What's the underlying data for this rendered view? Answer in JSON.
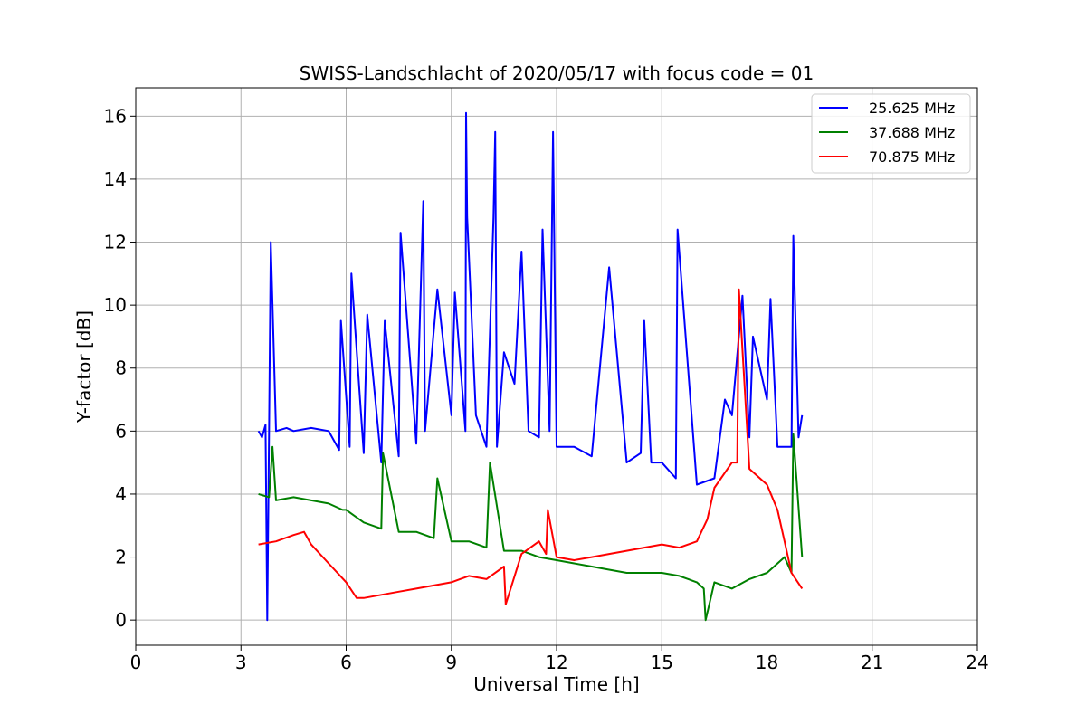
{
  "chart_data": {
    "type": "line",
    "title": "SWISS-Landschlacht of 2020/05/17 with focus code = 01",
    "xlabel": "Universal Time [h]",
    "ylabel": "Y-factor [dB]",
    "xlim": [
      0,
      24
    ],
    "ylim": [
      -0.8,
      16.9
    ],
    "xticks": [
      0,
      3,
      6,
      9,
      12,
      15,
      18,
      21,
      24
    ],
    "yticks": [
      0,
      2,
      4,
      6,
      8,
      10,
      12,
      14,
      16
    ],
    "grid": true,
    "legend_position": "top-right",
    "series": [
      {
        "name": "25.625 MHz",
        "color": "#0000ff",
        "x": [
          3.5,
          3.6,
          3.7,
          3.75,
          3.8,
          3.85,
          4.0,
          4.3,
          4.5,
          5.0,
          5.5,
          5.8,
          5.85,
          6.1,
          6.15,
          6.5,
          6.6,
          7.0,
          7.1,
          7.5,
          7.55,
          8.0,
          8.2,
          8.25,
          8.6,
          9.0,
          9.1,
          9.4,
          9.42,
          9.45,
          9.7,
          10.0,
          10.2,
          10.25,
          10.3,
          10.5,
          10.8,
          11.0,
          11.2,
          11.5,
          11.6,
          11.8,
          11.9,
          12.0,
          12.5,
          13.0,
          13.5,
          14.0,
          14.4,
          14.5,
          14.7,
          15.0,
          15.4,
          15.45,
          16.0,
          16.5,
          16.8,
          17.0,
          17.3,
          17.5,
          17.6,
          18.0,
          18.1,
          18.3,
          18.7,
          18.75,
          18.9,
          19.0
        ],
        "y": [
          6.0,
          5.8,
          6.2,
          0.0,
          6.0,
          12.0,
          6.0,
          6.1,
          6.0,
          6.1,
          6.0,
          5.4,
          9.5,
          5.5,
          11.0,
          5.3,
          9.7,
          5.0,
          9.5,
          5.2,
          12.3,
          5.6,
          13.3,
          6.0,
          10.5,
          6.5,
          10.4,
          6.0,
          16.1,
          12.8,
          6.5,
          5.5,
          12.8,
          15.5,
          5.5,
          8.5,
          7.5,
          11.7,
          6.0,
          5.8,
          12.4,
          6.0,
          15.5,
          5.5,
          5.5,
          5.2,
          11.2,
          5.0,
          5.3,
          9.5,
          5.0,
          5.0,
          4.5,
          12.4,
          4.3,
          4.5,
          7.0,
          6.5,
          10.3,
          5.8,
          9.0,
          7.0,
          10.2,
          5.5,
          5.5,
          12.2,
          5.8,
          6.5
        ]
      },
      {
        "name": "37.688 MHz",
        "color": "#008000",
        "x": [
          3.5,
          3.8,
          3.9,
          4.0,
          4.5,
          5.0,
          5.5,
          5.9,
          6.0,
          6.5,
          7.0,
          7.05,
          7.5,
          8.0,
          8.5,
          8.6,
          9.0,
          9.5,
          10.0,
          10.1,
          10.5,
          11.0,
          11.5,
          12.0,
          12.5,
          13.0,
          13.5,
          14.0,
          14.5,
          15.0,
          15.5,
          16.0,
          16.2,
          16.25,
          16.5,
          17.0,
          17.5,
          18.0,
          18.5,
          18.7,
          18.75,
          19.0
        ],
        "y": [
          4.0,
          3.9,
          5.5,
          3.8,
          3.9,
          3.8,
          3.7,
          3.5,
          3.5,
          3.1,
          2.9,
          5.3,
          2.8,
          2.8,
          2.6,
          4.5,
          2.5,
          2.5,
          2.3,
          5.0,
          2.2,
          2.2,
          2.0,
          1.9,
          1.8,
          1.7,
          1.6,
          1.5,
          1.5,
          1.5,
          1.4,
          1.2,
          1.0,
          0.0,
          1.2,
          1.0,
          1.3,
          1.5,
          2.0,
          1.5,
          5.9,
          2.0
        ]
      },
      {
        "name": "70.875 MHz",
        "color": "#ff0000",
        "x": [
          3.5,
          4.0,
          4.5,
          4.8,
          5.0,
          5.5,
          6.0,
          6.3,
          6.5,
          7.0,
          7.5,
          8.0,
          8.5,
          9.0,
          9.5,
          10.0,
          10.5,
          10.55,
          11.0,
          11.5,
          11.7,
          11.75,
          12.0,
          12.5,
          13.0,
          13.5,
          14.0,
          14.5,
          15.0,
          15.5,
          16.0,
          16.3,
          16.5,
          17.0,
          17.15,
          17.2,
          17.5,
          18.0,
          18.3,
          18.5,
          18.7,
          19.0
        ],
        "y": [
          2.4,
          2.5,
          2.7,
          2.8,
          2.4,
          1.8,
          1.2,
          0.7,
          0.7,
          0.8,
          0.9,
          1.0,
          1.1,
          1.2,
          1.4,
          1.3,
          1.7,
          0.5,
          2.1,
          2.5,
          2.1,
          3.5,
          2.0,
          1.9,
          2.0,
          2.1,
          2.2,
          2.3,
          2.4,
          2.3,
          2.5,
          3.2,
          4.2,
          5.0,
          5.0,
          10.5,
          4.8,
          4.3,
          3.5,
          2.5,
          1.5,
          1.0
        ]
      }
    ]
  }
}
